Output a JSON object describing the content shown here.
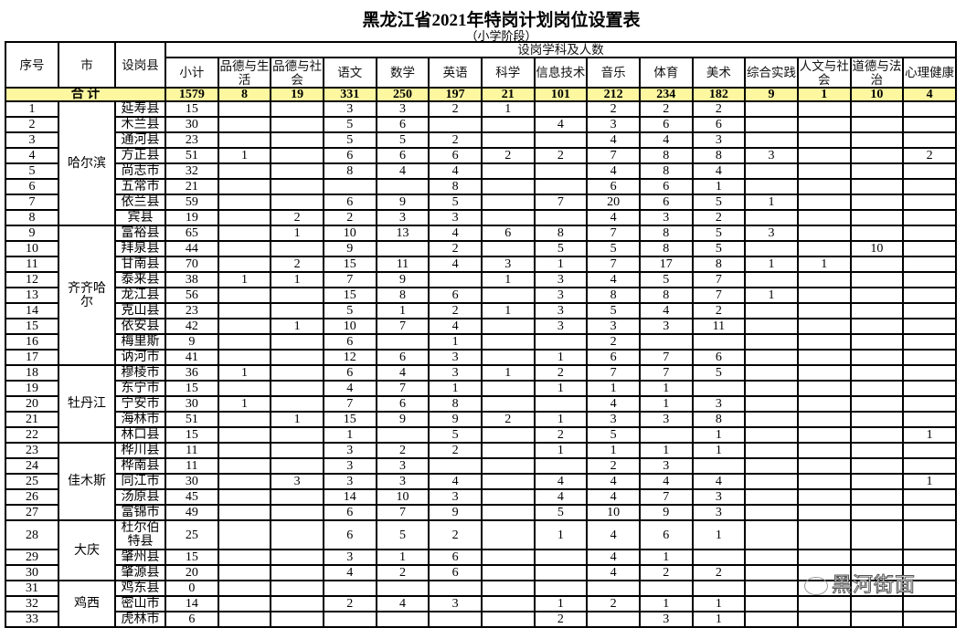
{
  "title": "黑龙江省2021年特岗计划岗位设置表",
  "subtitle": "（小学阶段）",
  "headers": {
    "index": "序号",
    "city": "市",
    "county": "设岗县",
    "group": "设岗学科及人数",
    "subjects": [
      "小计",
      "品德与生活",
      "品德与社会",
      "语文",
      "数学",
      "英语",
      "科学",
      "信息技术",
      "音乐",
      "体育",
      "美术",
      "综合实践",
      "人文与社会",
      "道德与法治",
      "心理健康"
    ]
  },
  "total": {
    "label": "合 计",
    "values": [
      "1579",
      "8",
      "19",
      "331",
      "250",
      "197",
      "21",
      "101",
      "212",
      "234",
      "182",
      "9",
      "1",
      "10",
      "4"
    ]
  },
  "cities": [
    {
      "name": "哈尔滨",
      "rows": [
        {
          "no": "1",
          "county": "延寿县",
          "v": [
            "15",
            "",
            "",
            "3",
            "3",
            "2",
            "1",
            "",
            "2",
            "2",
            "2",
            "",
            "",
            "",
            ""
          ]
        },
        {
          "no": "2",
          "county": "木兰县",
          "v": [
            "30",
            "",
            "",
            "5",
            "6",
            "",
            "",
            "4",
            "3",
            "6",
            "6",
            "",
            "",
            "",
            ""
          ]
        },
        {
          "no": "3",
          "county": "通河县",
          "v": [
            "23",
            "",
            "",
            "5",
            "5",
            "2",
            "",
            "",
            "4",
            "4",
            "3",
            "",
            "",
            "",
            ""
          ]
        },
        {
          "no": "4",
          "county": "方正县",
          "v": [
            "51",
            "1",
            "",
            "6",
            "6",
            "6",
            "2",
            "2",
            "7",
            "8",
            "8",
            "3",
            "",
            "",
            "2"
          ]
        },
        {
          "no": "5",
          "county": "尚志市",
          "v": [
            "32",
            "",
            "",
            "8",
            "4",
            "4",
            "",
            "",
            "4",
            "8",
            "4",
            "",
            "",
            "",
            ""
          ]
        },
        {
          "no": "6",
          "county": "五常市",
          "v": [
            "21",
            "",
            "",
            "",
            "",
            "8",
            "",
            "",
            "6",
            "6",
            "1",
            "",
            "",
            "",
            ""
          ]
        },
        {
          "no": "7",
          "county": "依兰县",
          "v": [
            "59",
            "",
            "",
            "6",
            "9",
            "5",
            "",
            "7",
            "20",
            "6",
            "5",
            "1",
            "",
            "",
            ""
          ]
        },
        {
          "no": "8",
          "county": "宾县",
          "v": [
            "19",
            "",
            "2",
            "2",
            "3",
            "3",
            "",
            "",
            "4",
            "3",
            "2",
            "",
            "",
            "",
            ""
          ]
        }
      ]
    },
    {
      "name": "齐齐哈尔",
      "rows": [
        {
          "no": "9",
          "county": "富裕县",
          "v": [
            "65",
            "",
            "1",
            "10",
            "13",
            "4",
            "6",
            "8",
            "7",
            "8",
            "5",
            "3",
            "",
            "",
            ""
          ]
        },
        {
          "no": "10",
          "county": "拜泉县",
          "v": [
            "44",
            "",
            "",
            "9",
            "",
            "2",
            "",
            "5",
            "5",
            "8",
            "5",
            "",
            "",
            "10",
            ""
          ]
        },
        {
          "no": "11",
          "county": "甘南县",
          "v": [
            "70",
            "",
            "2",
            "15",
            "11",
            "4",
            "3",
            "1",
            "7",
            "17",
            "8",
            "1",
            "1",
            "",
            ""
          ]
        },
        {
          "no": "12",
          "county": "泰来县",
          "v": [
            "38",
            "1",
            "1",
            "7",
            "9",
            "",
            "1",
            "3",
            "4",
            "5",
            "7",
            "",
            "",
            "",
            ""
          ]
        },
        {
          "no": "13",
          "county": "龙江县",
          "v": [
            "56",
            "",
            "",
            "15",
            "8",
            "6",
            "",
            "3",
            "8",
            "8",
            "7",
            "1",
            "",
            "",
            ""
          ]
        },
        {
          "no": "14",
          "county": "克山县",
          "v": [
            "23",
            "",
            "",
            "5",
            "1",
            "2",
            "1",
            "3",
            "5",
            "4",
            "2",
            "",
            "",
            "",
            ""
          ]
        },
        {
          "no": "15",
          "county": "依安县",
          "v": [
            "42",
            "",
            "1",
            "10",
            "7",
            "4",
            "",
            "3",
            "3",
            "3",
            "11",
            "",
            "",
            "",
            ""
          ]
        },
        {
          "no": "16",
          "county": "梅里斯",
          "v": [
            "9",
            "",
            "",
            "6",
            "",
            "1",
            "",
            "",
            "2",
            "",
            "",
            "",
            "",
            "",
            ""
          ]
        },
        {
          "no": "17",
          "county": "讷河市",
          "v": [
            "41",
            "",
            "",
            "12",
            "6",
            "3",
            "",
            "1",
            "6",
            "7",
            "6",
            "",
            "",
            "",
            ""
          ]
        }
      ]
    },
    {
      "name": "牡丹江",
      "rows": [
        {
          "no": "18",
          "county": "穆棱市",
          "v": [
            "36",
            "1",
            "",
            "6",
            "4",
            "3",
            "1",
            "2",
            "7",
            "7",
            "5",
            "",
            "",
            "",
            ""
          ]
        },
        {
          "no": "19",
          "county": "东宁市",
          "v": [
            "15",
            "",
            "",
            "4",
            "7",
            "1",
            "",
            "1",
            "1",
            "1",
            "",
            "",
            "",
            "",
            ""
          ]
        },
        {
          "no": "20",
          "county": "宁安市",
          "v": [
            "30",
            "1",
            "",
            "7",
            "6",
            "8",
            "",
            "",
            "4",
            "1",
            "3",
            "",
            "",
            "",
            ""
          ]
        },
        {
          "no": "21",
          "county": "海林市",
          "v": [
            "51",
            "",
            "1",
            "15",
            "9",
            "9",
            "2",
            "1",
            "3",
            "3",
            "8",
            "",
            "",
            "",
            ""
          ]
        },
        {
          "no": "22",
          "county": "林口县",
          "v": [
            "15",
            "",
            "",
            "1",
            "",
            "5",
            "",
            "2",
            "5",
            "",
            "1",
            "",
            "",
            "",
            "1"
          ]
        }
      ]
    },
    {
      "name": "佳木斯",
      "rows": [
        {
          "no": "23",
          "county": "桦川县",
          "v": [
            "11",
            "",
            "",
            "3",
            "2",
            "2",
            "",
            "1",
            "1",
            "1",
            "1",
            "",
            "",
            "",
            ""
          ]
        },
        {
          "no": "24",
          "county": "桦南县",
          "v": [
            "11",
            "",
            "",
            "3",
            "3",
            "",
            "",
            "",
            "2",
            "3",
            "",
            "",
            "",
            "",
            ""
          ]
        },
        {
          "no": "25",
          "county": "同江市",
          "v": [
            "30",
            "",
            "3",
            "3",
            "3",
            "4",
            "",
            "4",
            "4",
            "4",
            "4",
            "",
            "",
            "",
            "1"
          ]
        },
        {
          "no": "26",
          "county": "汤原县",
          "v": [
            "45",
            "",
            "",
            "14",
            "10",
            "3",
            "",
            "4",
            "4",
            "7",
            "3",
            "",
            "",
            "",
            ""
          ]
        },
        {
          "no": "27",
          "county": "富锦市",
          "v": [
            "49",
            "",
            "",
            "6",
            "7",
            "9",
            "",
            "5",
            "10",
            "9",
            "3",
            "",
            "",
            "",
            ""
          ]
        }
      ]
    },
    {
      "name": "大庆",
      "rows": [
        {
          "no": "28",
          "county": "杜尔伯特县",
          "v": [
            "25",
            "",
            "",
            "6",
            "5",
            "2",
            "",
            "1",
            "4",
            "6",
            "1",
            "",
            "",
            "",
            ""
          ]
        },
        {
          "no": "29",
          "county": "肇州县",
          "v": [
            "15",
            "",
            "",
            "3",
            "1",
            "6",
            "",
            "",
            "4",
            "1",
            "",
            "",
            "",
            "",
            ""
          ]
        },
        {
          "no": "30",
          "county": "肇源县",
          "v": [
            "20",
            "",
            "",
            "4",
            "2",
            "6",
            "",
            "",
            "4",
            "2",
            "2",
            "",
            "",
            "",
            ""
          ]
        }
      ]
    },
    {
      "name": "鸡西",
      "rows": [
        {
          "no": "31",
          "county": "鸡东县",
          "v": [
            "0",
            "",
            "",
            "",
            "",
            "",
            "",
            "",
            "",
            "",
            "",
            "",
            "",
            "",
            ""
          ]
        },
        {
          "no": "32",
          "county": "密山市",
          "v": [
            "14",
            "",
            "",
            "2",
            "4",
            "3",
            "",
            "1",
            "2",
            "1",
            "1",
            "",
            "",
            "",
            ""
          ]
        },
        {
          "no": "33",
          "county": "虎林市",
          "v": [
            "6",
            "",
            "",
            "",
            "",
            "",
            "",
            "2",
            "",
            "3",
            "1",
            "",
            "",
            "",
            ""
          ]
        }
      ]
    }
  ],
  "watermark": "黑河街面"
}
